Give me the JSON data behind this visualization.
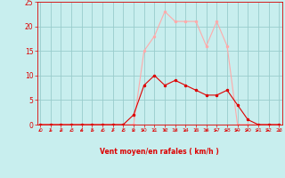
{
  "x": [
    0,
    1,
    2,
    3,
    4,
    5,
    6,
    7,
    8,
    9,
    10,
    11,
    12,
    13,
    14,
    15,
    16,
    17,
    18,
    19,
    20,
    21,
    22,
    23
  ],
  "vent_moyen": [
    0,
    0,
    0,
    0,
    0,
    0,
    0,
    0,
    0,
    2,
    8,
    10,
    8,
    9,
    8,
    7,
    6,
    6,
    7,
    4,
    1,
    0,
    0,
    0
  ],
  "rafales": [
    0,
    0,
    0,
    0,
    0,
    0,
    0,
    0,
    0,
    0,
    15,
    18,
    23,
    21,
    21,
    21,
    16,
    21,
    16,
    0,
    0,
    0,
    0,
    0
  ],
  "color_moyen": "#dd0000",
  "color_rafales": "#ffaaaa",
  "bg_color": "#c8eeee",
  "grid_color": "#99cccc",
  "xlabel": "Vent moyen/en rafales ( km/h )",
  "tick_color": "#dd0000",
  "ylim_max": 25,
  "yticks": [
    0,
    5,
    10,
    15,
    20,
    25
  ],
  "xticks": [
    0,
    1,
    2,
    3,
    4,
    5,
    6,
    7,
    8,
    9,
    10,
    11,
    12,
    13,
    14,
    15,
    16,
    17,
    18,
    19,
    20,
    21,
    22,
    23
  ],
  "arrow_angles": [
    225,
    210,
    210,
    225,
    225,
    210,
    225,
    210,
    225,
    225,
    90,
    225,
    180,
    45,
    225,
    210,
    45,
    90,
    90,
    90,
    90,
    90,
    90,
    135
  ]
}
